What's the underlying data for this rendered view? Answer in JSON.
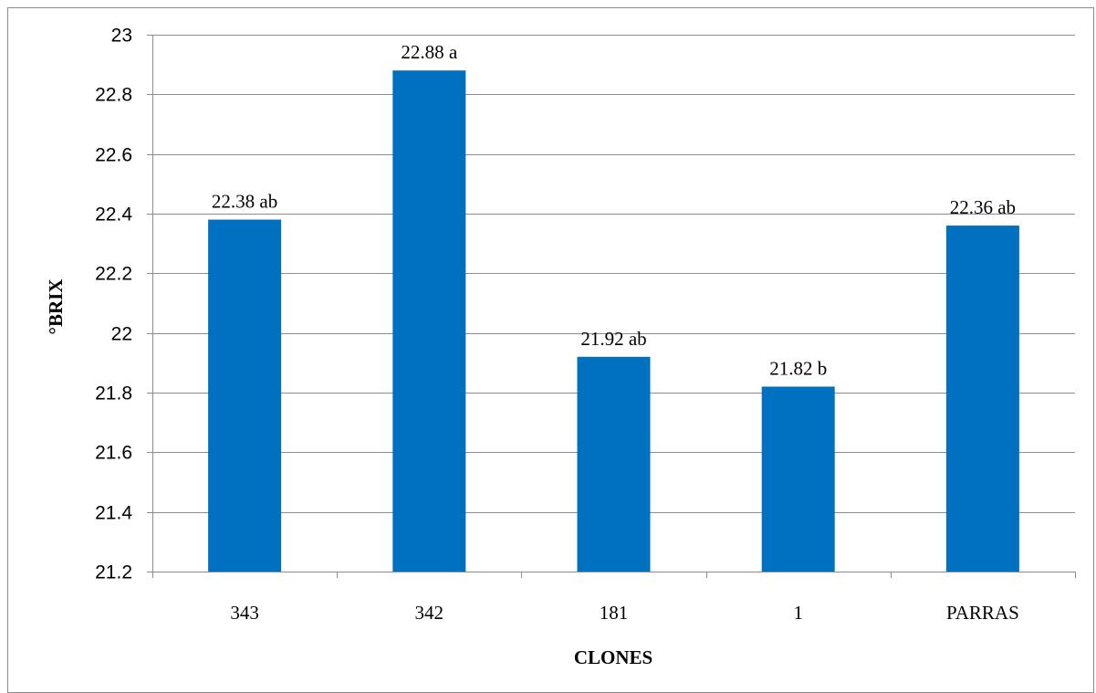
{
  "chart_data": {
    "type": "bar",
    "categories": [
      "343",
      "342",
      "181",
      "1",
      "PARRAS"
    ],
    "values": [
      22.38,
      22.88,
      21.92,
      21.82,
      22.36
    ],
    "data_labels": [
      "22.38 ab",
      "22.88 a",
      "21.92 ab",
      "21.82 b",
      "22.36 ab"
    ],
    "title": "",
    "xlabel": "CLONES",
    "ylabel": "°BRIX",
    "ylim": [
      21.2,
      23
    ],
    "yticks": [
      21.2,
      21.4,
      21.6,
      21.8,
      22,
      22.2,
      22.4,
      22.6,
      22.8,
      23
    ],
    "ytick_labels": [
      "21.2",
      "21.4",
      "21.6",
      "21.8",
      "22",
      "22.2",
      "22.4",
      "22.6",
      "22.8",
      "23"
    ],
    "grid": true,
    "legend": "none",
    "bar_color": "#0070C0"
  }
}
